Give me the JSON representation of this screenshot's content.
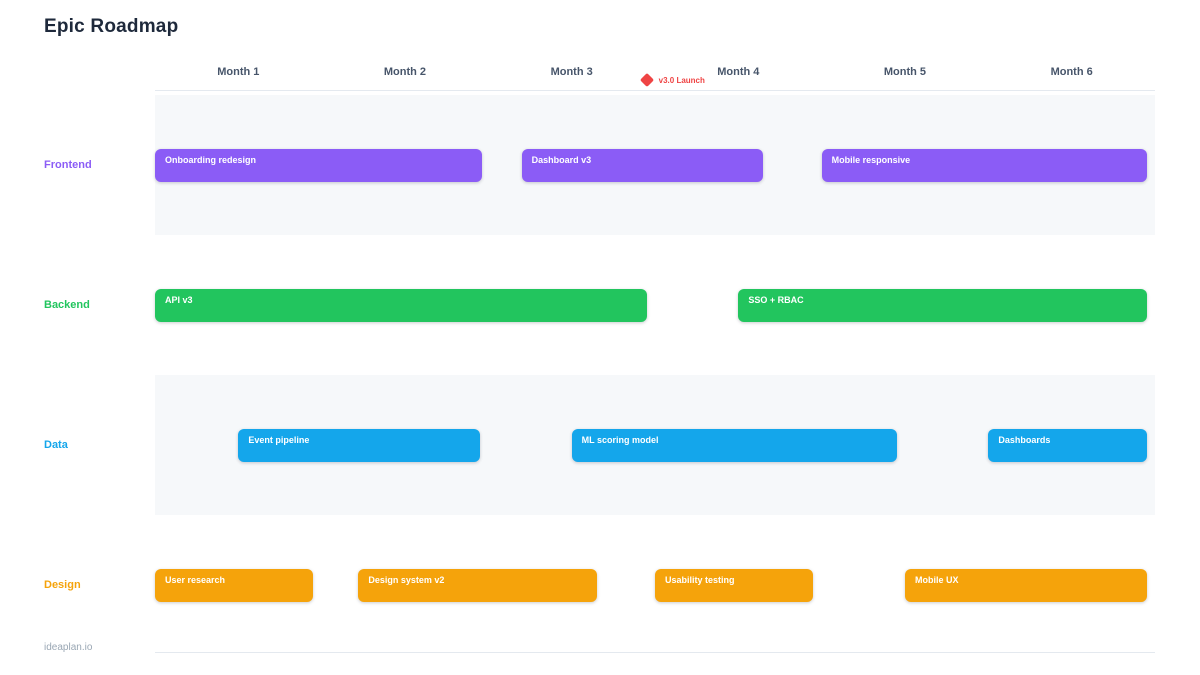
{
  "title": "Epic Roadmap",
  "watermark": "ideaplan.io",
  "chart_data": {
    "type": "bar",
    "variant": "gantt-roadmap",
    "title": "Epic Roadmap",
    "x_axis": {
      "unit": "months",
      "range": [
        0,
        6
      ],
      "tick_labels": [
        "Month 1",
        "Month 2",
        "Month 3",
        "Month 4",
        "Month 5",
        "Month 6"
      ]
    },
    "milestone": {
      "label": "v3.0 Launch",
      "month": 2.95,
      "color": "#ef4444",
      "icon": "diamond-icon"
    },
    "lanes": [
      {
        "name": "Frontend",
        "color": "#8b5cf6",
        "shaded": true,
        "bars": [
          {
            "label": "Onboarding redesign",
            "start": 0,
            "end": 1.96
          },
          {
            "label": "Dashboard v3",
            "start": 2.2,
            "end": 3.65
          },
          {
            "label": "Mobile responsive",
            "start": 4.0,
            "end": 5.95
          }
        ]
      },
      {
        "name": "Backend",
        "color": "#22c55e",
        "shaded": false,
        "bars": [
          {
            "label": "API v3",
            "start": 0,
            "end": 2.95
          },
          {
            "label": "SSO + RBAC",
            "start": 3.5,
            "end": 5.95
          }
        ]
      },
      {
        "name": "Data",
        "color": "#14a6eb",
        "shaded": true,
        "bars": [
          {
            "label": "Event pipeline",
            "start": 0.5,
            "end": 1.95
          },
          {
            "label": "ML scoring model",
            "start": 2.5,
            "end": 4.45
          },
          {
            "label": "Dashboards",
            "start": 5.0,
            "end": 5.95
          }
        ]
      },
      {
        "name": "Design",
        "color": "#f5a30b",
        "shaded": false,
        "bars": [
          {
            "label": "User research",
            "start": 0,
            "end": 0.95
          },
          {
            "label": "Design system v2",
            "start": 1.22,
            "end": 2.65
          },
          {
            "label": "Usability testing",
            "start": 3.0,
            "end": 3.95
          },
          {
            "label": "Mobile UX",
            "start": 4.5,
            "end": 5.95
          }
        ]
      }
    ],
    "legend": "none",
    "grid": "off"
  }
}
